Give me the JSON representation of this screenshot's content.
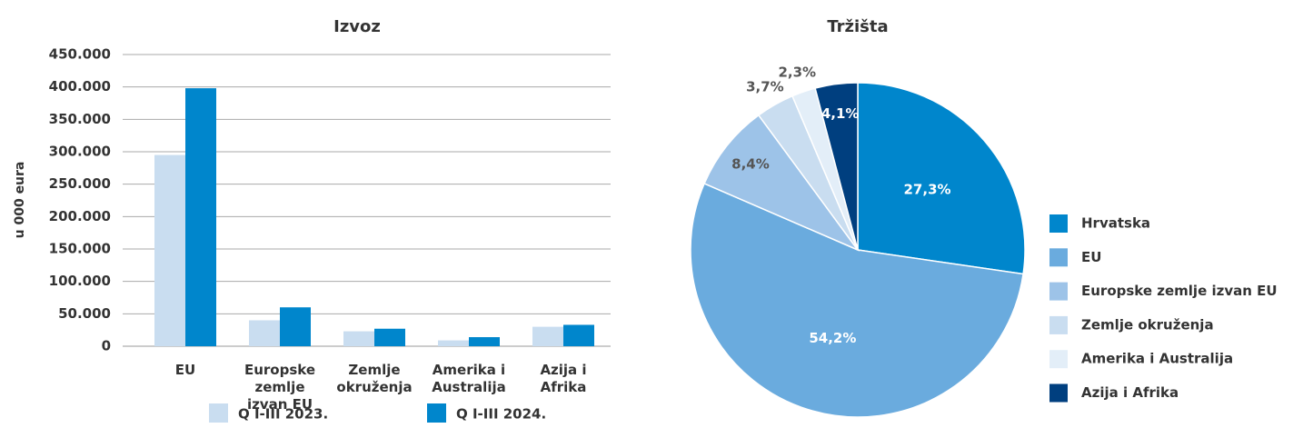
{
  "chart_data": [
    {
      "type": "bar",
      "title": "Izvoz",
      "ylabel": "u 000 eura",
      "categories": [
        "EU",
        "Europske zemlje izvan EU",
        "Zemlje okruženja",
        "Amerika i Australija",
        "Azija i Afrika"
      ],
      "series": [
        {
          "name": "Q I-III 2023.",
          "color": "#c9ddf0",
          "values": [
            295000,
            40000,
            23000,
            9000,
            30000
          ]
        },
        {
          "name": "Q I-III 2024.",
          "color": "#0086cc",
          "values": [
            398000,
            60000,
            27000,
            14000,
            33000
          ]
        }
      ],
      "ylim": [
        0,
        450000
      ],
      "yticks": [
        0,
        {
          "value": 50000,
          "label": "50.000"
        },
        {
          "value": 100000,
          "label": "100.000"
        },
        {
          "value": 150000,
          "label": "150.000"
        },
        {
          "value": 200000,
          "label": "200.000"
        },
        {
          "value": 250000,
          "label": "250.000"
        },
        {
          "value": 300000,
          "label": "300.000"
        },
        {
          "value": 350000,
          "label": "350.000"
        },
        {
          "value": 400000,
          "label": "400.000"
        },
        {
          "value": 450000,
          "label": "450.000"
        }
      ],
      "grid": true,
      "legend": "bottom"
    },
    {
      "type": "pie",
      "title": "Tržišta",
      "categories": [
        "Hrvatska",
        "EU",
        "Europske zemlje izvan EU",
        "Zemlje okruženja",
        "Amerika i Australija",
        "Azija i Afrika"
      ],
      "values": [
        27.3,
        54.2,
        8.4,
        3.7,
        2.3,
        4.1
      ],
      "value_labels": [
        "27,3%",
        "54,2%",
        "8,4%",
        "3,7%",
        "2,3%",
        "4,1%"
      ],
      "colors": [
        "#0086cc",
        "#6aabde",
        "#9dc3e8",
        "#c9ddf0",
        "#e3eef8",
        "#003f7f"
      ],
      "legend": "right"
    }
  ]
}
